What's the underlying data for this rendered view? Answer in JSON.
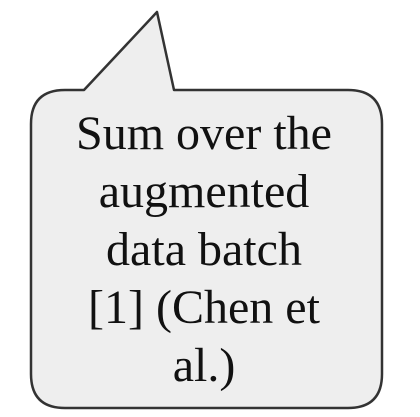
{
  "callout": {
    "lines": [
      "Sum over the",
      "augmented",
      "data batch",
      "[1] (Chen et",
      "al.)"
    ],
    "fill_color": "#eeeeee",
    "stroke_color": "#333333"
  }
}
